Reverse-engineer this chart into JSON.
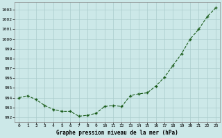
{
  "x": [
    0,
    1,
    2,
    3,
    4,
    5,
    6,
    7,
    8,
    9,
    10,
    11,
    12,
    13,
    14,
    15,
    16,
    17,
    18,
    19,
    20,
    21,
    22,
    23
  ],
  "y": [
    994.0,
    994.2,
    993.8,
    993.2,
    992.8,
    992.6,
    992.6,
    992.1,
    992.2,
    992.4,
    993.1,
    993.2,
    993.1,
    994.2,
    994.4,
    994.5,
    995.2,
    996.1,
    997.3,
    998.5,
    1000.0,
    1001.0,
    1002.3,
    1003.2
  ],
  "line_color": "#1a5c1a",
  "marker_color": "#1a5c1a",
  "bg_color": "#cce8e8",
  "grid_color": "#aacccc",
  "xlabel": "Graphe pression niveau de la mer (hPa)",
  "ylim": [
    991.5,
    1003.8
  ],
  "xlim": [
    -0.5,
    23.5
  ],
  "yticks": [
    992,
    993,
    994,
    995,
    996,
    997,
    998,
    999,
    1000,
    1001,
    1002,
    1003
  ],
  "xticks": [
    0,
    1,
    2,
    3,
    4,
    5,
    6,
    7,
    8,
    9,
    10,
    11,
    12,
    13,
    14,
    15,
    16,
    17,
    18,
    19,
    20,
    21,
    22,
    23
  ]
}
